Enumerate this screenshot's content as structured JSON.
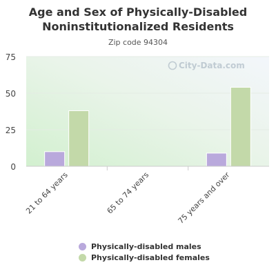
{
  "chart_data": {
    "type": "bar",
    "title": "Age and Sex of Physically-Disabled Noninstitutionalized Residents",
    "subtitle": "Zip code 94304",
    "watermark": "City-Data.com",
    "categories": [
      "21 to 64 years",
      "65 to 74 years",
      "75 years and over"
    ],
    "series": [
      {
        "name": "Physically-disabled males",
        "color": "#b9a9dc",
        "values": [
          10,
          0,
          9
        ]
      },
      {
        "name": "Physically-disabled females",
        "color": "#c3d9a9",
        "values": [
          38,
          0,
          54
        ]
      }
    ],
    "ylim": [
      0,
      75
    ],
    "yticks": [
      "0",
      "25",
      "50",
      "75"
    ],
    "grid": true,
    "legend_position": "bottom"
  }
}
